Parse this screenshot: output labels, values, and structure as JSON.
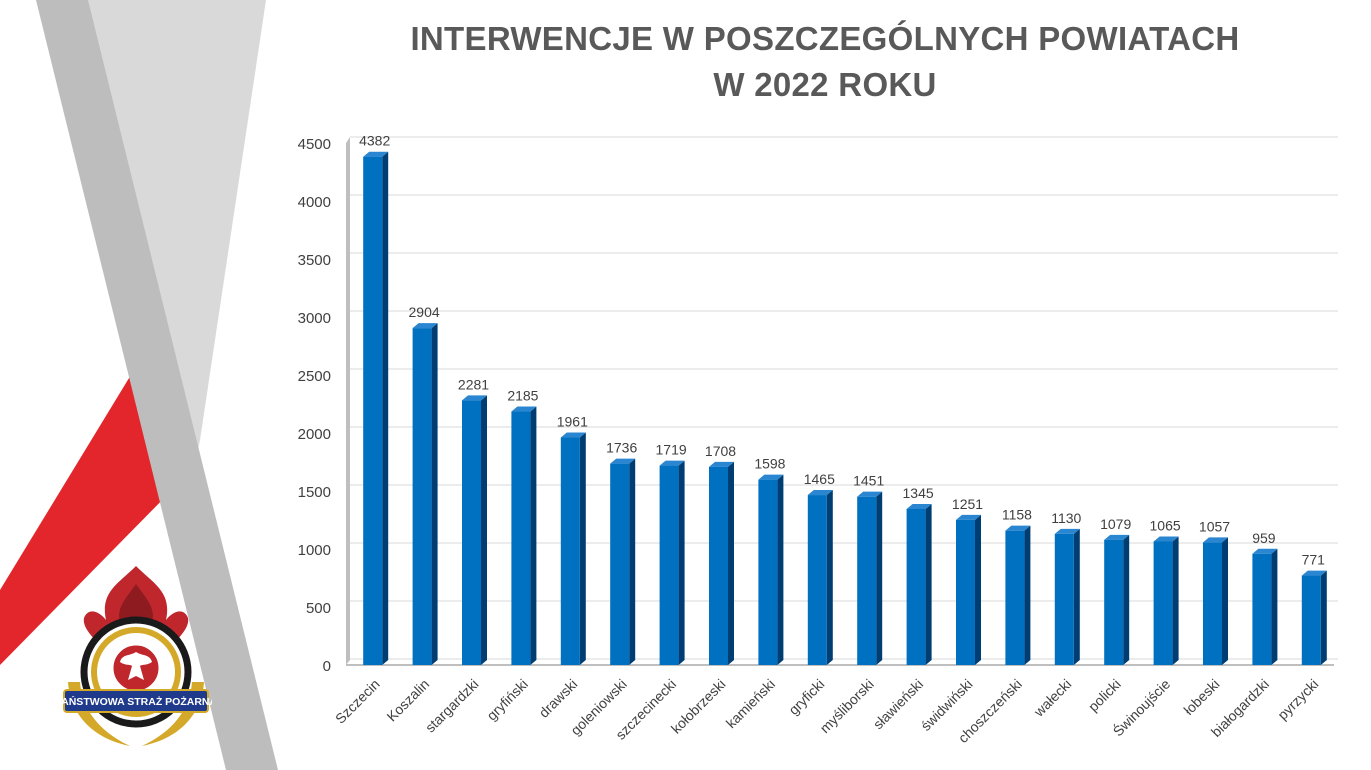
{
  "title_line1": "INTERWENCJE W POSZCZEGÓLNYCH POWIATACH",
  "title_line2": "W 2022 ROKU",
  "logo": {
    "label": "PAŃSTWOWA STRAŻ POŻARNA"
  },
  "colors": {
    "bar_front": "#0070C0",
    "bar_side": "#003D73",
    "bar_top": "#2A86D0",
    "title": "#595959",
    "accent_red": "#E3262C"
  },
  "chart_data": {
    "type": "bar",
    "title": "INTERWENCJE W POSZCZEGÓLNYCH POWIATACH W 2022 ROKU",
    "xlabel": "",
    "ylabel": "",
    "ylim": [
      0,
      4500
    ],
    "yticks": [
      0,
      500,
      1000,
      1500,
      2000,
      2500,
      3000,
      3500,
      4000,
      4500
    ],
    "grid": true,
    "legend": "none",
    "categories": [
      "Szczecin",
      "Koszalin",
      "stargardzki",
      "gryfiński",
      "drawski",
      "goleniowski",
      "szczecinecki",
      "kołobrzeski",
      "kamieński",
      "gryficki",
      "myśliborski",
      "sławieński",
      "świdwiński",
      "choszczeński",
      "wałecki",
      "policki",
      "Świnoujście",
      "łobeski",
      "białogardzki",
      "pyrzycki"
    ],
    "values": [
      4382,
      2904,
      2281,
      2185,
      1961,
      1736,
      1719,
      1708,
      1598,
      1465,
      1451,
      1345,
      1251,
      1158,
      1130,
      1079,
      1065,
      1057,
      959,
      771
    ]
  }
}
